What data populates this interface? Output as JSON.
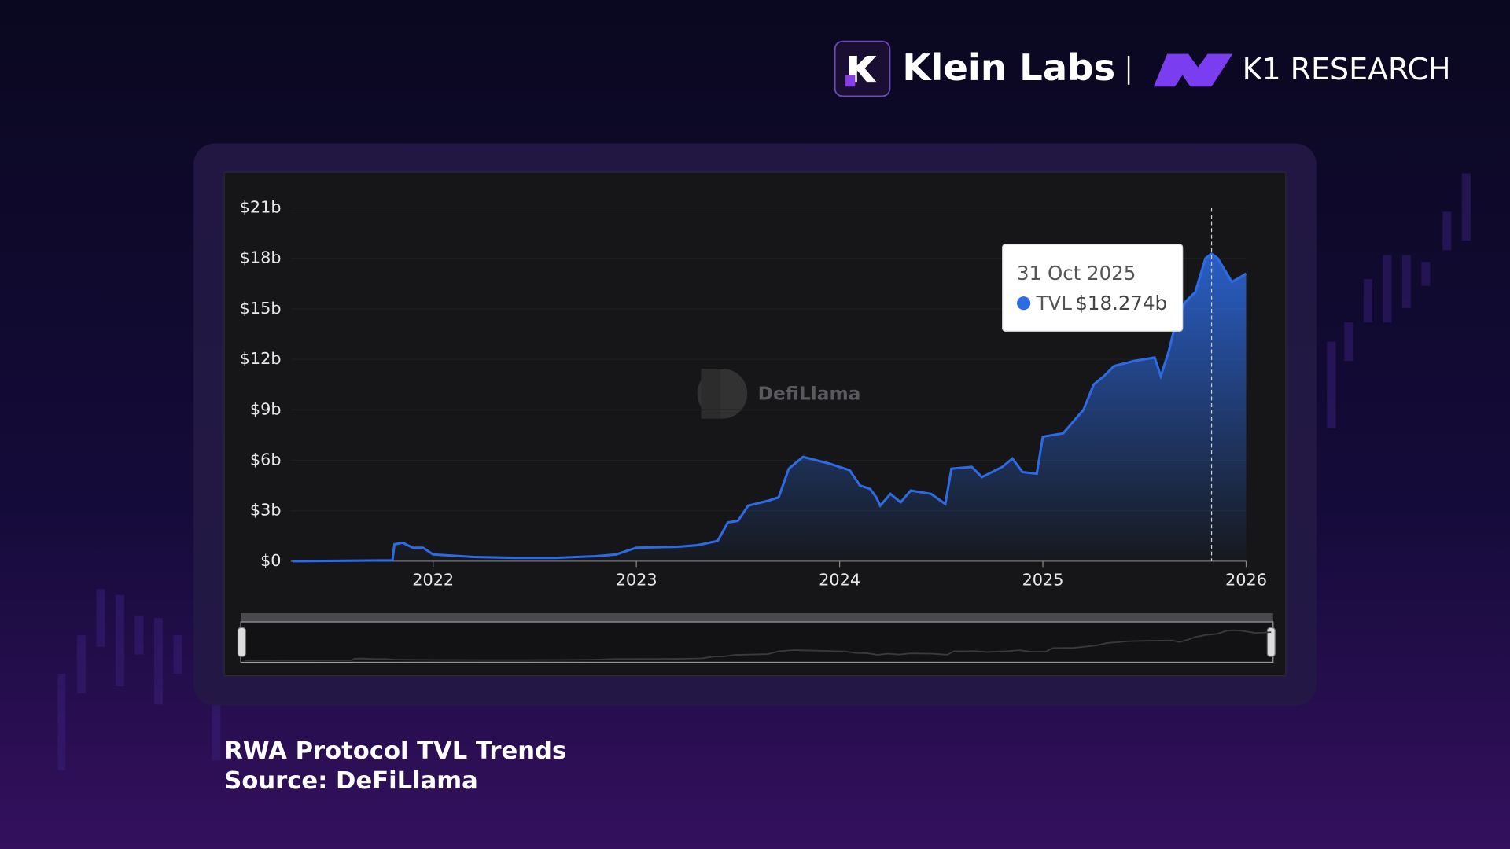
{
  "header": {
    "brand": "Klein Labs",
    "partner": "K1 RESEARCH"
  },
  "chart_data": {
    "type": "line",
    "watermark": "DefiLlama",
    "xlim": [
      2021.3,
      2026.0
    ],
    "xticks": [
      2022,
      2023,
      2024,
      2025,
      2026
    ],
    "ylim": [
      0,
      21
    ],
    "yticks": [
      {
        "value": 0,
        "label": "$0"
      },
      {
        "value": 3,
        "label": "$3b"
      },
      {
        "value": 6,
        "label": "$6b"
      },
      {
        "value": 9,
        "label": "$9b"
      },
      {
        "value": 12,
        "label": "$12b"
      },
      {
        "value": 15,
        "label": "$15b"
      },
      {
        "value": 18,
        "label": "$18b"
      },
      {
        "value": 21,
        "label": "$21b"
      }
    ],
    "x": [
      2021.31,
      2021.8,
      2021.81,
      2021.85,
      2021.9,
      2021.95,
      2022.0,
      2022.2,
      2022.4,
      2022.6,
      2022.8,
      2022.9,
      2023.0,
      2023.2,
      2023.3,
      2023.4,
      2023.45,
      2023.5,
      2023.55,
      2023.65,
      2023.7,
      2023.75,
      2023.82,
      2023.95,
      2024.05,
      2024.1,
      2024.15,
      2024.18,
      2024.2,
      2024.25,
      2024.3,
      2024.35,
      2024.45,
      2024.52,
      2024.55,
      2024.65,
      2024.7,
      2024.8,
      2024.85,
      2024.9,
      2024.97,
      2025.0,
      2025.1,
      2025.15,
      2025.2,
      2025.25,
      2025.3,
      2025.35,
      2025.45,
      2025.55,
      2025.58,
      2025.62,
      2025.65,
      2025.7,
      2025.75,
      2025.8,
      2025.83,
      2025.86,
      2025.9,
      2025.93,
      2025.96,
      2026.0
    ],
    "series": [
      {
        "name": "TVL",
        "color": "#2d6be4",
        "values": [
          0,
          0.05,
          1.0,
          1.1,
          0.8,
          0.8,
          0.4,
          0.25,
          0.2,
          0.2,
          0.3,
          0.4,
          0.8,
          0.85,
          0.95,
          1.2,
          2.3,
          2.4,
          3.3,
          3.6,
          3.8,
          5.5,
          6.2,
          5.8,
          5.4,
          4.5,
          4.3,
          3.8,
          3.3,
          4.0,
          3.5,
          4.2,
          4.0,
          3.4,
          5.5,
          5.6,
          5.0,
          5.6,
          6.1,
          5.3,
          5.2,
          7.4,
          7.6,
          8.3,
          9.0,
          10.5,
          11.0,
          11.6,
          11.9,
          12.1,
          11.0,
          12.5,
          14.0,
          15.4,
          16.0,
          18.0,
          18.274,
          18.0,
          17.2,
          16.6,
          16.8,
          17.1
        ]
      }
    ],
    "tooltip": {
      "x": 2025.83,
      "date": "31 Oct 2025",
      "value": {
        "value": 18.274,
        "label": "$18.274b"
      }
    }
  },
  "caption": {
    "title": "RWA Protocol TVL Trends",
    "source": "Source: DeFiLlama"
  }
}
